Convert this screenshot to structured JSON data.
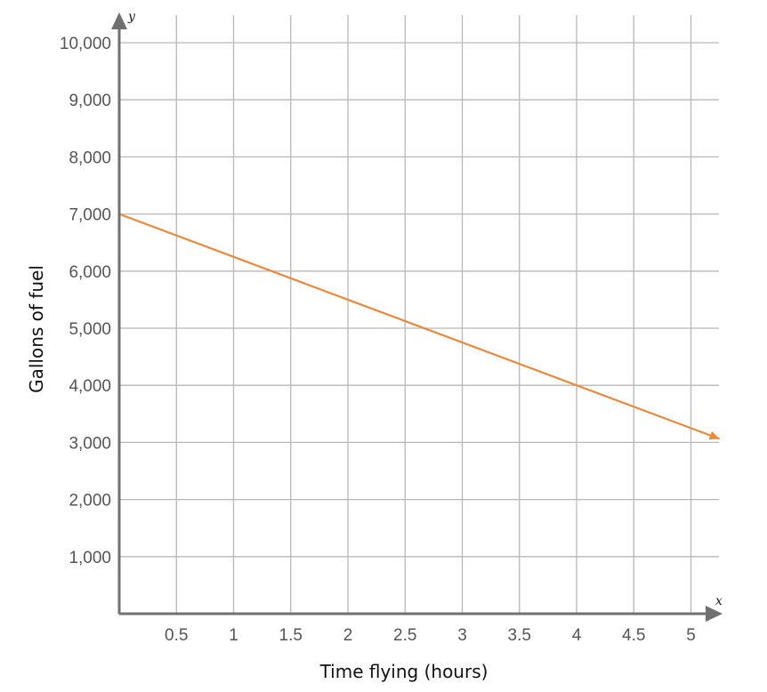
{
  "chart_data": {
    "type": "line",
    "title": "",
    "xlabel": "Time flying (hours)",
    "ylabel": "Gallons of fuel",
    "x_axis_letter": "x",
    "y_axis_letter": "y",
    "xlim": [
      0,
      5.25
    ],
    "ylim": [
      0,
      10500
    ],
    "x_ticks": [
      0.5,
      1,
      1.5,
      2,
      2.5,
      3,
      3.5,
      4,
      4.5,
      5
    ],
    "x_tick_labels": [
      "0.5",
      "1",
      "1.5",
      "2",
      "2.5",
      "3",
      "3.5",
      "4",
      "4.5",
      "5"
    ],
    "y_ticks": [
      1000,
      2000,
      3000,
      4000,
      5000,
      6000,
      7000,
      8000,
      9000,
      10000
    ],
    "y_tick_labels": [
      "1,000",
      "2,000",
      "3,000",
      "4,000",
      "5,000",
      "6,000",
      "7,000",
      "8,000",
      "9,000",
      "10,000"
    ],
    "grid": true,
    "series": [
      {
        "x": [
          0,
          5.25
        ],
        "y": [
          7000,
          3063
        ],
        "color": "#f0883a",
        "end_arrow": true
      }
    ],
    "colors": {
      "axis": "#707070",
      "grid": "#b8b8b8",
      "line": "#f0883a"
    }
  }
}
